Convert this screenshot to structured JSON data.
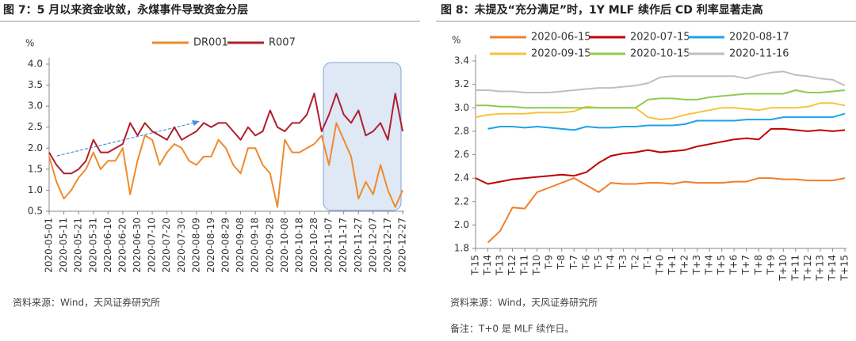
{
  "chart_data": [
    {
      "type": "line",
      "title": "图 7：5 月以来资金收敛，永煤事件导致资金分层",
      "y_label": "%",
      "categories": [
        "2020-05-01",
        null,
        "2020-05-11",
        null,
        "2020-05-21",
        null,
        "2020-05-31",
        null,
        "2020-06-10",
        null,
        "2020-06-20",
        null,
        "2020-06-30",
        null,
        "2020-07-10",
        null,
        "2020-07-20",
        null,
        "2020-07-30",
        null,
        "2020-08-09",
        null,
        "2020-08-19",
        null,
        "2020-08-29",
        null,
        "2020-09-08",
        null,
        "2020-09-18",
        null,
        "2020-09-28",
        null,
        "2020-10-08",
        null,
        "2020-10-18",
        null,
        "2020-10-28",
        null,
        "2020-11-07",
        null,
        "2020-11-17",
        null,
        "2020-11-27",
        null,
        "2020-12-07",
        null,
        "2020-12-17",
        null,
        "2020-12-27"
      ],
      "series": [
        {
          "name": "DR001",
          "color": "#ee8a2e",
          "values": [
            1.8,
            1.2,
            0.8,
            1.0,
            1.3,
            1.5,
            1.9,
            1.5,
            1.7,
            1.7,
            2.0,
            0.9,
            1.7,
            2.3,
            2.2,
            1.6,
            1.9,
            2.1,
            2.0,
            1.7,
            1.6,
            1.8,
            1.8,
            2.2,
            2.0,
            1.6,
            1.4,
            2.0,
            2.0,
            1.6,
            1.4,
            0.6,
            2.2,
            1.9,
            1.9,
            2.0,
            2.1,
            2.3,
            1.6,
            2.6,
            2.2,
            1.8,
            0.8,
            1.2,
            0.9,
            1.6,
            1.0,
            0.6,
            1.0
          ]
        },
        {
          "name": "R007",
          "color": "#b01e2e",
          "values": [
            1.9,
            1.6,
            1.4,
            1.4,
            1.5,
            1.7,
            2.2,
            1.9,
            1.9,
            2.0,
            2.1,
            2.6,
            2.3,
            2.6,
            2.4,
            2.3,
            2.2,
            2.5,
            2.2,
            2.3,
            2.4,
            2.6,
            2.5,
            2.6,
            2.6,
            2.4,
            2.2,
            2.5,
            2.3,
            2.4,
            2.9,
            2.5,
            2.4,
            2.6,
            2.6,
            2.8,
            3.3,
            2.4,
            2.8,
            3.3,
            2.8,
            2.6,
            2.9,
            2.3,
            2.4,
            2.6,
            2.2,
            3.3,
            2.4
          ]
        }
      ],
      "ylim": [
        0.5,
        4.0
      ],
      "yticks": [
        0.5,
        {
          "value": 1,
          "label": "1.0"
        },
        1.5,
        {
          "value": 2,
          "label": "2.0"
        },
        2.5,
        {
          "value": 3,
          "label": "3.0"
        },
        3.5,
        {
          "value": 4,
          "label": "4.0"
        }
      ],
      "grid": false,
      "legend": "top",
      "source": "资料来源：Wind，天风证券研究所"
    },
    {
      "type": "line",
      "title": "图 8：未提及“充分满足”时，1Y MLF 续作后 CD 利率显著走高",
      "y_label": "%",
      "categories": [
        "T-15",
        "T-14",
        "T-13",
        "T-12",
        "T-11",
        "T-10",
        "T-9",
        "T-8",
        "T-7",
        "T-6",
        "T-5",
        "T-4",
        "T-3",
        "T-2",
        "T-1",
        "T+0",
        "T+1",
        "T+2",
        "T+3",
        "T+4",
        "T+5",
        "T+6",
        "T+7",
        "T+8",
        "T+9",
        "T+10",
        "T+11",
        "T+12",
        "T+13",
        "T+14",
        "T+15"
      ],
      "series": [
        {
          "name": "2020-06-15",
          "color": "#f07f2a",
          "values": [
            null,
            1.85,
            1.95,
            2.15,
            2.14,
            2.28,
            2.32,
            2.36,
            2.4,
            2.34,
            2.28,
            2.36,
            2.35,
            2.35,
            2.36,
            2.36,
            2.35,
            2.37,
            2.36,
            2.36,
            2.36,
            2.37,
            2.37,
            2.4,
            2.4,
            2.39,
            2.39,
            2.38,
            2.38,
            2.38,
            2.4
          ]
        },
        {
          "name": "2020-07-15",
          "color": "#c00000",
          "values": [
            2.4,
            2.35,
            2.37,
            2.39,
            2.4,
            2.41,
            2.42,
            2.43,
            2.42,
            2.45,
            2.53,
            2.59,
            2.61,
            2.62,
            2.64,
            2.62,
            2.63,
            2.64,
            2.67,
            2.69,
            2.71,
            2.73,
            2.74,
            2.73,
            2.82,
            2.82,
            2.81,
            2.8,
            2.81,
            2.8,
            2.81
          ]
        },
        {
          "name": "2020-08-17",
          "color": "#1fa2e8",
          "values": [
            null,
            2.82,
            2.84,
            2.84,
            2.83,
            2.84,
            2.83,
            2.82,
            2.81,
            2.84,
            2.83,
            2.83,
            2.84,
            2.84,
            2.85,
            2.85,
            2.85,
            2.86,
            2.89,
            2.89,
            2.89,
            2.89,
            2.9,
            2.9,
            2.9,
            2.92,
            2.92,
            2.92,
            2.92,
            2.92,
            2.95
          ]
        },
        {
          "name": "2020-09-15",
          "color": "#f9c23c",
          "values": [
            2.92,
            2.94,
            2.95,
            2.95,
            2.95,
            2.96,
            2.96,
            2.96,
            2.97,
            3.01,
            3.0,
            3.0,
            3.0,
            3.0,
            2.92,
            2.9,
            2.91,
            2.94,
            2.96,
            2.98,
            3.0,
            3.0,
            2.99,
            2.98,
            3.0,
            3.0,
            3.0,
            3.01,
            3.04,
            3.04,
            3.02
          ]
        },
        {
          "name": "2020-10-15",
          "color": "#8ccc50",
          "values": [
            3.02,
            3.02,
            3.01,
            3.01,
            3.0,
            3.0,
            3.0,
            3.0,
            3.0,
            3.0,
            3.0,
            3.0,
            3.0,
            3.0,
            3.07,
            3.08,
            3.08,
            3.07,
            3.07,
            3.09,
            3.1,
            3.11,
            3.12,
            3.12,
            3.12,
            3.12,
            3.15,
            3.13,
            3.13,
            3.14,
            3.15
          ]
        },
        {
          "name": "2020-11-16",
          "color": "#bfbfbf",
          "values": [
            3.15,
            3.15,
            3.14,
            3.14,
            3.13,
            3.13,
            3.13,
            3.14,
            3.15,
            3.16,
            3.17,
            3.17,
            3.18,
            3.19,
            3.21,
            3.26,
            3.27,
            3.27,
            3.27,
            3.27,
            3.27,
            3.27,
            3.25,
            3.28,
            3.3,
            3.31,
            3.28,
            3.27,
            3.25,
            3.24,
            3.19
          ]
        }
      ],
      "ylim": [
        1.8,
        3.4
      ],
      "yticks": [
        1.8,
        {
          "value": 2,
          "label": "2.0"
        },
        2.2,
        2.4,
        2.6,
        2.8,
        {
          "value": 3,
          "label": "3.0"
        },
        3.2,
        3.4
      ],
      "grid": false,
      "legend": "top",
      "source": "资料来源：Wind，天风证券研究所",
      "note": "备注：T+0 是 MLF 续作日。"
    }
  ]
}
